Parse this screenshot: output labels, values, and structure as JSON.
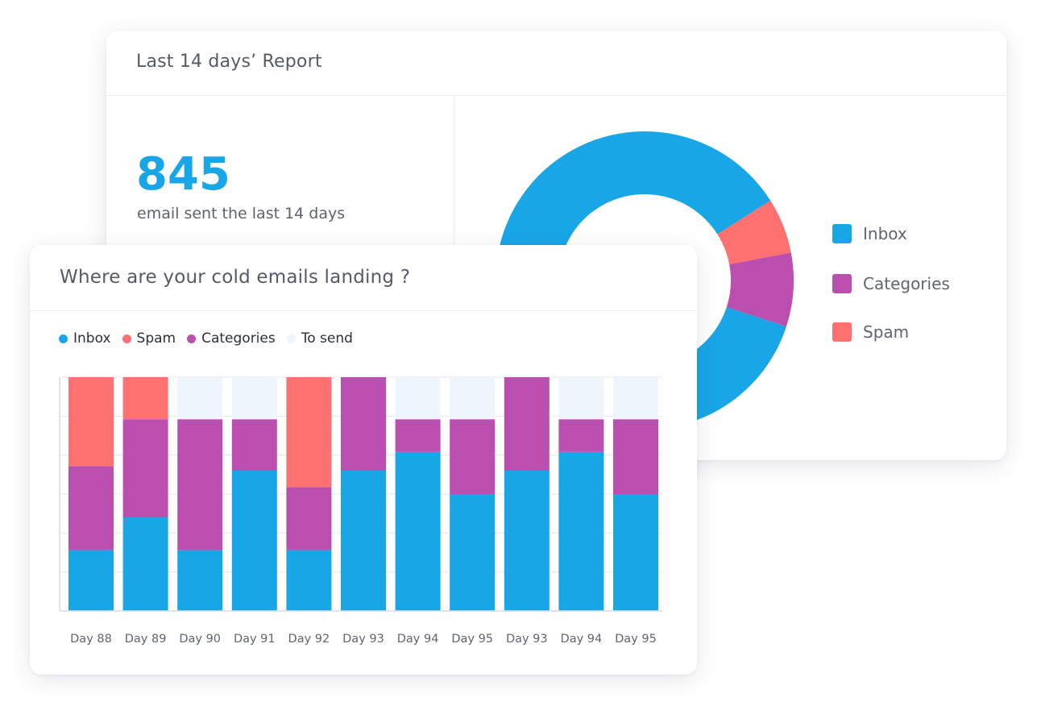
{
  "report": {
    "title": "Last 14 days’ Report",
    "total": "845",
    "total_caption": "email sent the last 14 days"
  },
  "donut_legend": [
    {
      "label": "Inbox",
      "color": "#18a6e6"
    },
    {
      "label": "Categories",
      "color": "#bb4fb0"
    },
    {
      "label": "Spam",
      "color": "#ff7070"
    }
  ],
  "landing": {
    "title": "Where are your cold emails landing ?"
  },
  "bar_legend": [
    {
      "label": "Inbox",
      "color": "#18a6e6"
    },
    {
      "label": "Spam",
      "color": "#ff7070"
    },
    {
      "label": "Categories",
      "color": "#bb4fb0"
    },
    {
      "label": "To send",
      "color": "#eef5fc"
    }
  ],
  "chart_data": [
    {
      "type": "pie",
      "style": "donut",
      "slices": [
        {
          "name": "Inbox",
          "value": 86,
          "color": "#18a6e6"
        },
        {
          "name": "Spam",
          "value": 6,
          "color": "#ff7070"
        },
        {
          "name": "Categories",
          "value": 8,
          "color": "#bb4fb0"
        }
      ],
      "legend": "right"
    },
    {
      "type": "bar",
      "stacked": true,
      "categories": [
        "Day 88",
        "Day 89",
        "Day 90",
        "Day 91",
        "Day 92",
        "Day 93",
        "Day 94",
        "Day 95",
        "Day 93",
        "Day 94",
        "Day 95"
      ],
      "series": [
        {
          "name": "Inbox",
          "color": "#18a6e6",
          "values": [
            26,
            40,
            26,
            60,
            26,
            60,
            68,
            50,
            60,
            68,
            50
          ]
        },
        {
          "name": "Categories",
          "color": "#bb4fb0",
          "values": [
            36,
            42,
            56,
            22,
            27,
            40,
            14,
            32,
            40,
            14,
            32
          ]
        },
        {
          "name": "Spam",
          "color": "#ff7070",
          "values": [
            38,
            18,
            0,
            0,
            47,
            0,
            0,
            0,
            0,
            0,
            0
          ]
        },
        {
          "name": "To send",
          "color": "#eef5fc",
          "values": [
            0,
            0,
            18,
            18,
            0,
            0,
            18,
            18,
            0,
            18,
            18
          ]
        }
      ],
      "ylim": [
        0,
        100
      ],
      "grid": true,
      "legend": "top-left"
    }
  ]
}
